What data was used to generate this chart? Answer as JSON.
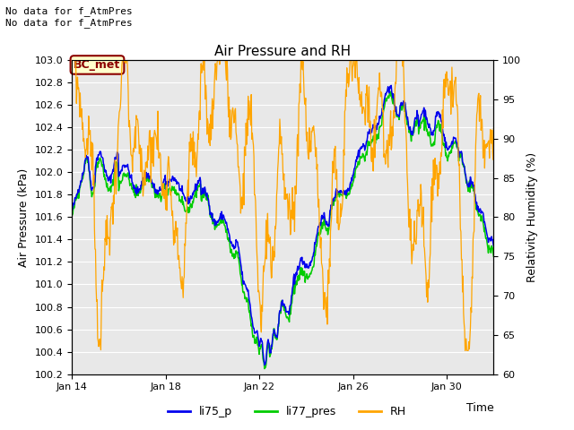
{
  "title": "Air Pressure and RH",
  "xlabel": "Time",
  "ylabel_left": "Air Pressure (kPa)",
  "ylabel_right": "Relativity Humidity (%)",
  "top_text_line1": "No data for f_AtmPres",
  "top_text_line2": "No data for f̲AtmPres",
  "legend_label": "BC_met",
  "ylim_left": [
    100.2,
    103.0
  ],
  "ylim_right": [
    60,
    100
  ],
  "yticks_left": [
    100.2,
    100.4,
    100.6,
    100.8,
    101.0,
    101.2,
    101.4,
    101.6,
    101.8,
    102.0,
    102.2,
    102.4,
    102.6,
    102.8,
    103.0
  ],
  "yticks_right": [
    60,
    65,
    70,
    75,
    80,
    85,
    90,
    95,
    100
  ],
  "xlim": [
    0,
    18
  ],
  "xtick_positions": [
    0,
    4,
    8,
    12,
    16
  ],
  "xtick_labels": [
    "Jan 14",
    "Jan 18",
    "Jan 22",
    "Jan 26",
    "Jan 30"
  ],
  "bg_color": "#ffffff",
  "plot_bg_color": "#e8e8e8",
  "line_colors": {
    "li75_p": "#0000ee",
    "li77_pres": "#00cc00",
    "RH": "#ffa500"
  },
  "legend_entries": [
    "li75_p",
    "li77_pres",
    "RH"
  ],
  "legend_box_color": "#8B0000",
  "legend_box_bg": "#ffffcc",
  "grid_color": "#ffffff",
  "tick_fontsize": 8,
  "label_fontsize": 9,
  "title_fontsize": 11
}
